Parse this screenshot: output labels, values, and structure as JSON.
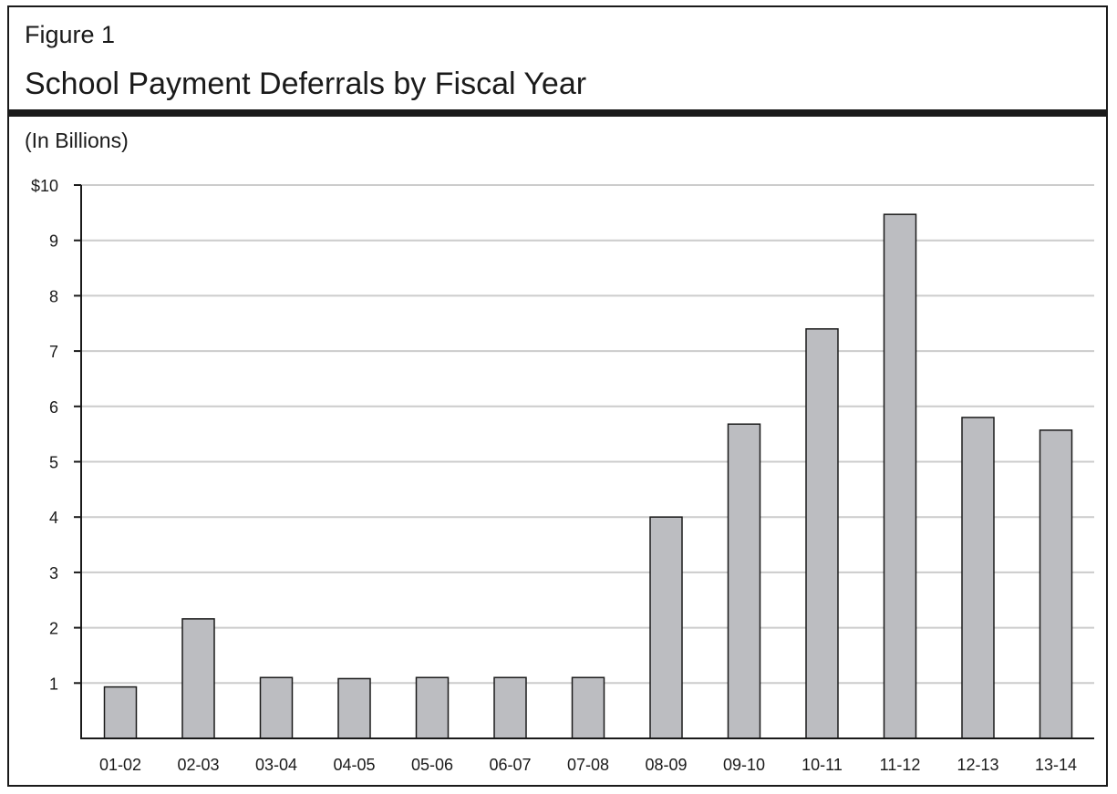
{
  "figure": {
    "label": "Figure 1",
    "title": "School Payment Deferrals by Fiscal Year",
    "units": "(In Billions)"
  },
  "chart_data": {
    "type": "bar",
    "title": "School Payment Deferrals by Fiscal Year",
    "ylabel": "(In Billions)",
    "xlabel": "",
    "categories": [
      "01-02",
      "02-03",
      "03-04",
      "04-05",
      "05-06",
      "06-07",
      "07-08",
      "08-09",
      "09-10",
      "10-11",
      "11-12",
      "12-13",
      "13-14"
    ],
    "values": [
      0.93,
      2.16,
      1.1,
      1.08,
      1.1,
      1.1,
      1.1,
      4.0,
      5.68,
      7.4,
      9.47,
      5.8,
      5.57
    ],
    "ylim": [
      0,
      10
    ],
    "yticks": [
      1,
      2,
      3,
      4,
      5,
      6,
      7,
      8,
      9,
      10
    ],
    "ytick_labels": [
      "1",
      "2",
      "3",
      "4",
      "5",
      "6",
      "7",
      "8",
      "9",
      "$10"
    ],
    "grid": true,
    "colors": {
      "bar_fill": "#bcbdc1",
      "bar_stroke": "#1a1a1a",
      "grid": "#cccccc",
      "axis": "#1a1a1a"
    }
  }
}
